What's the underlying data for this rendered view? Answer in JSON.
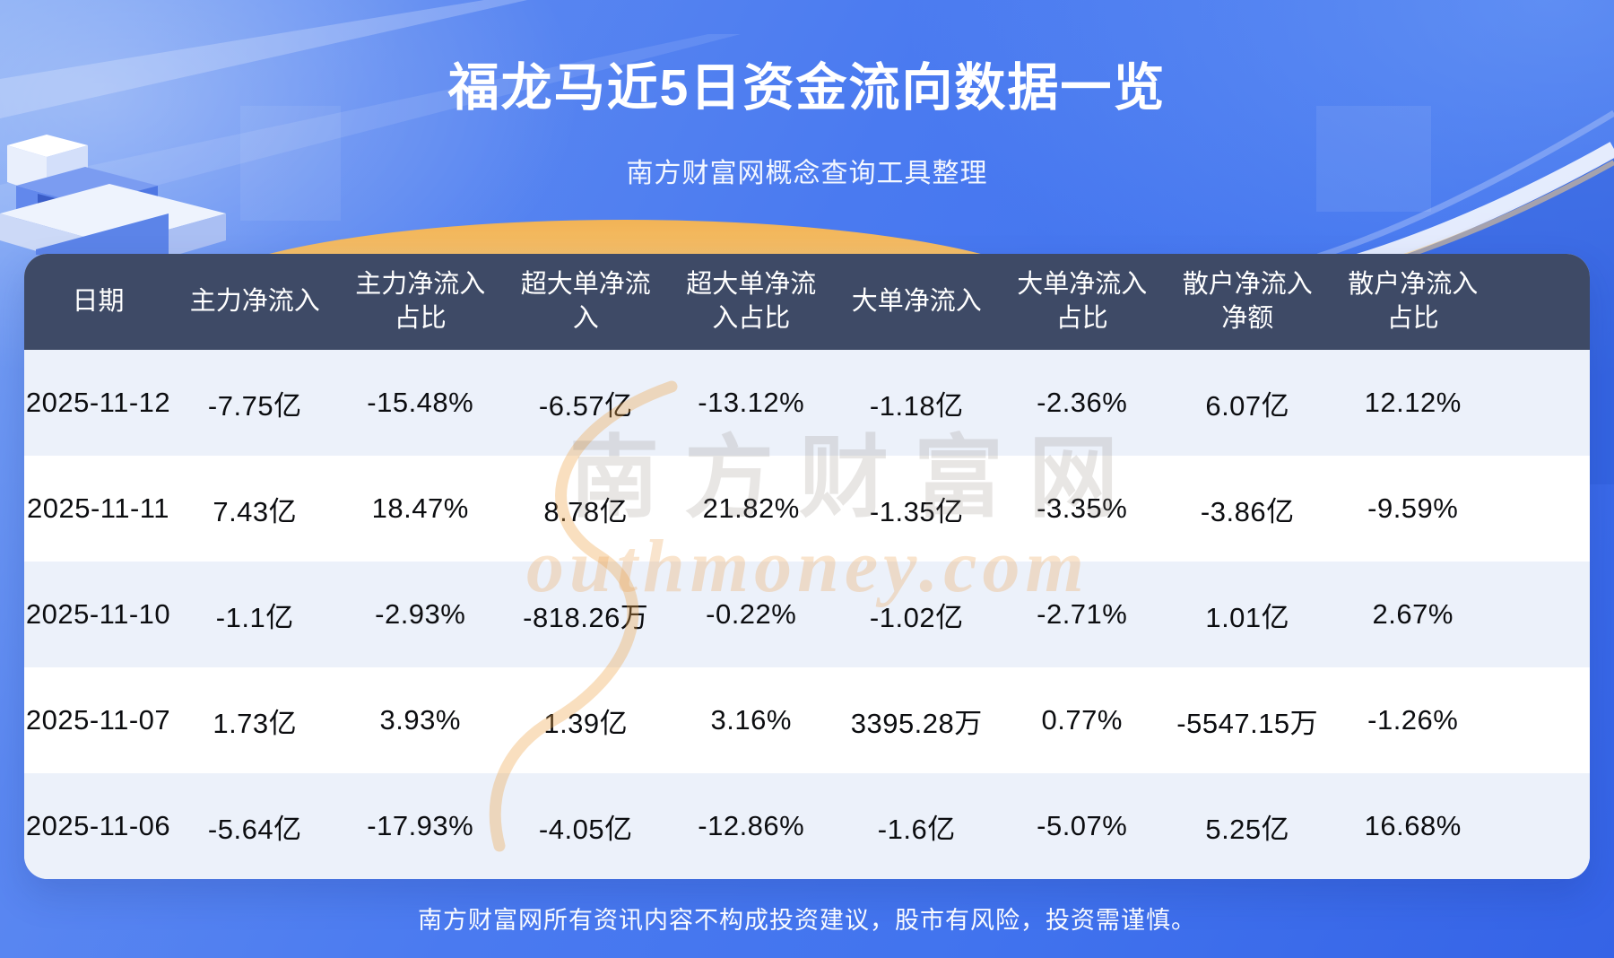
{
  "page": {
    "title": "福龙马近5日资金流向数据一览",
    "subtitle": "南方财富网概念查询工具整理",
    "disclaimer": "南方财富网所有资讯内容不构成投资建议，股市有风险，投资需谨慎。"
  },
  "watermark": {
    "cn": "南方财富网",
    "en": "outhmoney.com"
  },
  "colors": {
    "background_blue": "#4478ef",
    "header_bg": "#3e4a66",
    "row_alt_bg": "#ecf1fa",
    "row_bg": "#ffffff",
    "gold_accent": "#f6c56a",
    "text_dark": "#0c0d10",
    "text_light": "#ffffff"
  },
  "chart_data": {
    "type": "table",
    "title": "福龙马近5日资金流向数据一览",
    "columns": [
      "日期",
      "主力净流入",
      "主力净流入占比",
      "超大单净流入",
      "超大单净流入占比",
      "大单净流入",
      "大单净流入占比",
      "散户净流入净额",
      "散户净流入占比"
    ],
    "rows": [
      [
        "2025-11-12",
        "-7.75亿",
        "-15.48%",
        "-6.57亿",
        "-13.12%",
        "-1.18亿",
        "-2.36%",
        "6.07亿",
        "12.12%"
      ],
      [
        "2025-11-11",
        "7.43亿",
        "18.47%",
        "8.78亿",
        "21.82%",
        "-1.35亿",
        "-3.35%",
        "-3.86亿",
        "-9.59%"
      ],
      [
        "2025-11-10",
        "-1.1亿",
        "-2.93%",
        "-818.26万",
        "-0.22%",
        "-1.02亿",
        "-2.71%",
        "1.01亿",
        "2.67%"
      ],
      [
        "2025-11-07",
        "1.73亿",
        "3.93%",
        "1.39亿",
        "3.16%",
        "3395.28万",
        "0.77%",
        "-5547.15万",
        "-1.26%"
      ],
      [
        "2025-11-06",
        "-5.64亿",
        "-17.93%",
        "-4.05亿",
        "-12.86%",
        "-1.6亿",
        "-5.07%",
        "5.25亿",
        "16.68%"
      ]
    ]
  }
}
